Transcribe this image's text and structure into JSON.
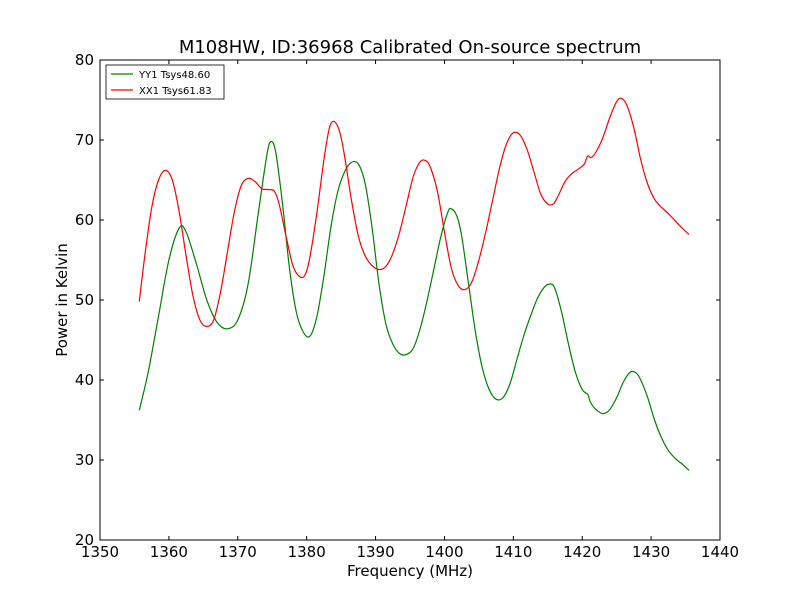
{
  "chart_data": {
    "type": "line",
    "title": "M108HW, ID:36968 Calibrated On-source spectrum",
    "xlabel": "Frequency (MHz)",
    "ylabel": "Power in Kelvin",
    "xlim": [
      1350,
      1440
    ],
    "ylim": [
      20,
      80
    ],
    "xticks": [
      "1350",
      "1360",
      "1370",
      "1380",
      "1390",
      "1400",
      "1410",
      "1420",
      "1430",
      "1440"
    ],
    "yticks": [
      "20",
      "30",
      "40",
      "50",
      "60",
      "70",
      "80"
    ],
    "grid": false,
    "legend_position": "top-left",
    "series": [
      {
        "name": "YY1 Tsys48.60",
        "color": "#008000",
        "points": [
          [
            1355.7,
            36.2
          ],
          [
            1357.0,
            41.0
          ],
          [
            1358.5,
            48.0
          ],
          [
            1360.0,
            55.0
          ],
          [
            1361.5,
            59.0
          ],
          [
            1362.5,
            58.5
          ],
          [
            1364.0,
            54.5
          ],
          [
            1365.5,
            50.0
          ],
          [
            1367.0,
            47.2
          ],
          [
            1368.5,
            46.4
          ],
          [
            1370.0,
            47.5
          ],
          [
            1371.5,
            52.0
          ],
          [
            1373.0,
            61.0
          ],
          [
            1374.2,
            68.0
          ],
          [
            1374.8,
            69.8
          ],
          [
            1375.5,
            68.5
          ],
          [
            1376.5,
            62.0
          ],
          [
            1377.5,
            54.0
          ],
          [
            1378.5,
            48.5
          ],
          [
            1379.5,
            46.0
          ],
          [
            1380.5,
            45.5
          ],
          [
            1381.5,
            48.0
          ],
          [
            1382.5,
            53.0
          ],
          [
            1383.5,
            59.0
          ],
          [
            1384.5,
            63.5
          ],
          [
            1385.5,
            66.0
          ],
          [
            1386.5,
            67.2
          ],
          [
            1387.5,
            67.0
          ],
          [
            1388.5,
            64.5
          ],
          [
            1389.5,
            59.0
          ],
          [
            1390.5,
            52.0
          ],
          [
            1391.5,
            47.0
          ],
          [
            1392.5,
            44.5
          ],
          [
            1393.5,
            43.3
          ],
          [
            1394.5,
            43.2
          ],
          [
            1395.5,
            44.0
          ],
          [
            1396.5,
            46.5
          ],
          [
            1397.5,
            50.0
          ],
          [
            1398.5,
            54.0
          ],
          [
            1399.5,
            58.0
          ],
          [
            1400.5,
            61.0
          ],
          [
            1401.0,
            61.4
          ],
          [
            1401.8,
            60.5
          ],
          [
            1402.5,
            58.0
          ],
          [
            1403.5,
            52.0
          ],
          [
            1404.5,
            46.0
          ],
          [
            1405.5,
            41.5
          ],
          [
            1406.5,
            38.8
          ],
          [
            1407.5,
            37.6
          ],
          [
            1408.5,
            37.8
          ],
          [
            1409.5,
            39.5
          ],
          [
            1410.5,
            42.5
          ],
          [
            1411.5,
            45.5
          ],
          [
            1412.5,
            48.0
          ],
          [
            1413.5,
            50.2
          ],
          [
            1414.5,
            51.6
          ],
          [
            1415.3,
            52.0
          ],
          [
            1416.0,
            51.5
          ],
          [
            1417.0,
            48.5
          ],
          [
            1418.0,
            44.5
          ],
          [
            1419.0,
            41.0
          ],
          [
            1420.0,
            38.8
          ],
          [
            1420.8,
            38.2
          ],
          [
            1421.2,
            37.2
          ],
          [
            1422.0,
            36.3
          ],
          [
            1423.0,
            35.8
          ],
          [
            1424.0,
            36.3
          ],
          [
            1425.0,
            37.8
          ],
          [
            1426.0,
            39.8
          ],
          [
            1427.0,
            41.0
          ],
          [
            1427.8,
            40.9
          ],
          [
            1428.5,
            40.0
          ],
          [
            1429.5,
            37.8
          ],
          [
            1430.5,
            35.0
          ],
          [
            1431.5,
            32.8
          ],
          [
            1432.5,
            31.2
          ],
          [
            1433.5,
            30.2
          ],
          [
            1434.5,
            29.5
          ],
          [
            1435.5,
            28.7
          ]
        ]
      },
      {
        "name": "XX1 Tsys61.83",
        "color": "#ff0000",
        "points": [
          [
            1355.7,
            49.8
          ],
          [
            1356.5,
            55.5
          ],
          [
            1357.5,
            61.5
          ],
          [
            1358.5,
            65.0
          ],
          [
            1359.5,
            66.2
          ],
          [
            1360.5,
            65.0
          ],
          [
            1361.5,
            61.0
          ],
          [
            1362.5,
            55.5
          ],
          [
            1363.5,
            50.5
          ],
          [
            1364.5,
            47.5
          ],
          [
            1365.5,
            46.7
          ],
          [
            1366.5,
            47.5
          ],
          [
            1367.5,
            51.0
          ],
          [
            1368.5,
            56.0
          ],
          [
            1369.5,
            61.0
          ],
          [
            1370.5,
            64.3
          ],
          [
            1371.5,
            65.2
          ],
          [
            1372.5,
            64.8
          ],
          [
            1373.5,
            63.9
          ],
          [
            1374.5,
            63.8
          ],
          [
            1375.3,
            63.6
          ],
          [
            1376.0,
            62.0
          ],
          [
            1377.0,
            58.0
          ],
          [
            1378.0,
            54.3
          ],
          [
            1379.0,
            52.9
          ],
          [
            1379.8,
            53.2
          ],
          [
            1380.5,
            55.5
          ],
          [
            1381.5,
            61.0
          ],
          [
            1382.5,
            67.5
          ],
          [
            1383.3,
            71.5
          ],
          [
            1384.0,
            72.3
          ],
          [
            1384.8,
            71.0
          ],
          [
            1385.5,
            68.0
          ],
          [
            1386.5,
            62.5
          ],
          [
            1387.5,
            58.0
          ],
          [
            1388.5,
            55.5
          ],
          [
            1389.5,
            54.3
          ],
          [
            1390.5,
            53.8
          ],
          [
            1391.5,
            54.2
          ],
          [
            1392.5,
            55.8
          ],
          [
            1393.5,
            58.5
          ],
          [
            1394.5,
            62.0
          ],
          [
            1395.5,
            65.5
          ],
          [
            1396.5,
            67.3
          ],
          [
            1397.3,
            67.4
          ],
          [
            1398.0,
            66.5
          ],
          [
            1399.0,
            63.5
          ],
          [
            1400.0,
            58.5
          ],
          [
            1401.0,
            54.0
          ],
          [
            1402.0,
            51.8
          ],
          [
            1403.0,
            51.3
          ],
          [
            1404.0,
            52.3
          ],
          [
            1405.0,
            55.0
          ],
          [
            1406.0,
            58.5
          ],
          [
            1407.0,
            62.5
          ],
          [
            1408.0,
            66.5
          ],
          [
            1409.0,
            69.5
          ],
          [
            1410.0,
            70.9
          ],
          [
            1411.0,
            70.6
          ],
          [
            1412.0,
            68.8
          ],
          [
            1413.0,
            66.0
          ],
          [
            1414.0,
            63.2
          ],
          [
            1415.0,
            62.0
          ],
          [
            1415.8,
            62.0
          ],
          [
            1416.5,
            63.0
          ],
          [
            1417.5,
            64.8
          ],
          [
            1418.5,
            65.8
          ],
          [
            1419.5,
            66.4
          ],
          [
            1420.3,
            67.0
          ],
          [
            1420.8,
            68.0
          ],
          [
            1421.3,
            67.8
          ],
          [
            1422.0,
            68.5
          ],
          [
            1423.0,
            70.3
          ],
          [
            1424.0,
            72.8
          ],
          [
            1425.0,
            74.8
          ],
          [
            1425.7,
            75.2
          ],
          [
            1426.5,
            74.3
          ],
          [
            1427.5,
            71.5
          ],
          [
            1428.5,
            67.5
          ],
          [
            1429.5,
            64.5
          ],
          [
            1430.5,
            62.6
          ],
          [
            1431.5,
            61.6
          ],
          [
            1432.5,
            60.8
          ],
          [
            1433.5,
            59.9
          ],
          [
            1434.5,
            59.0
          ],
          [
            1435.5,
            58.2
          ]
        ]
      }
    ]
  }
}
